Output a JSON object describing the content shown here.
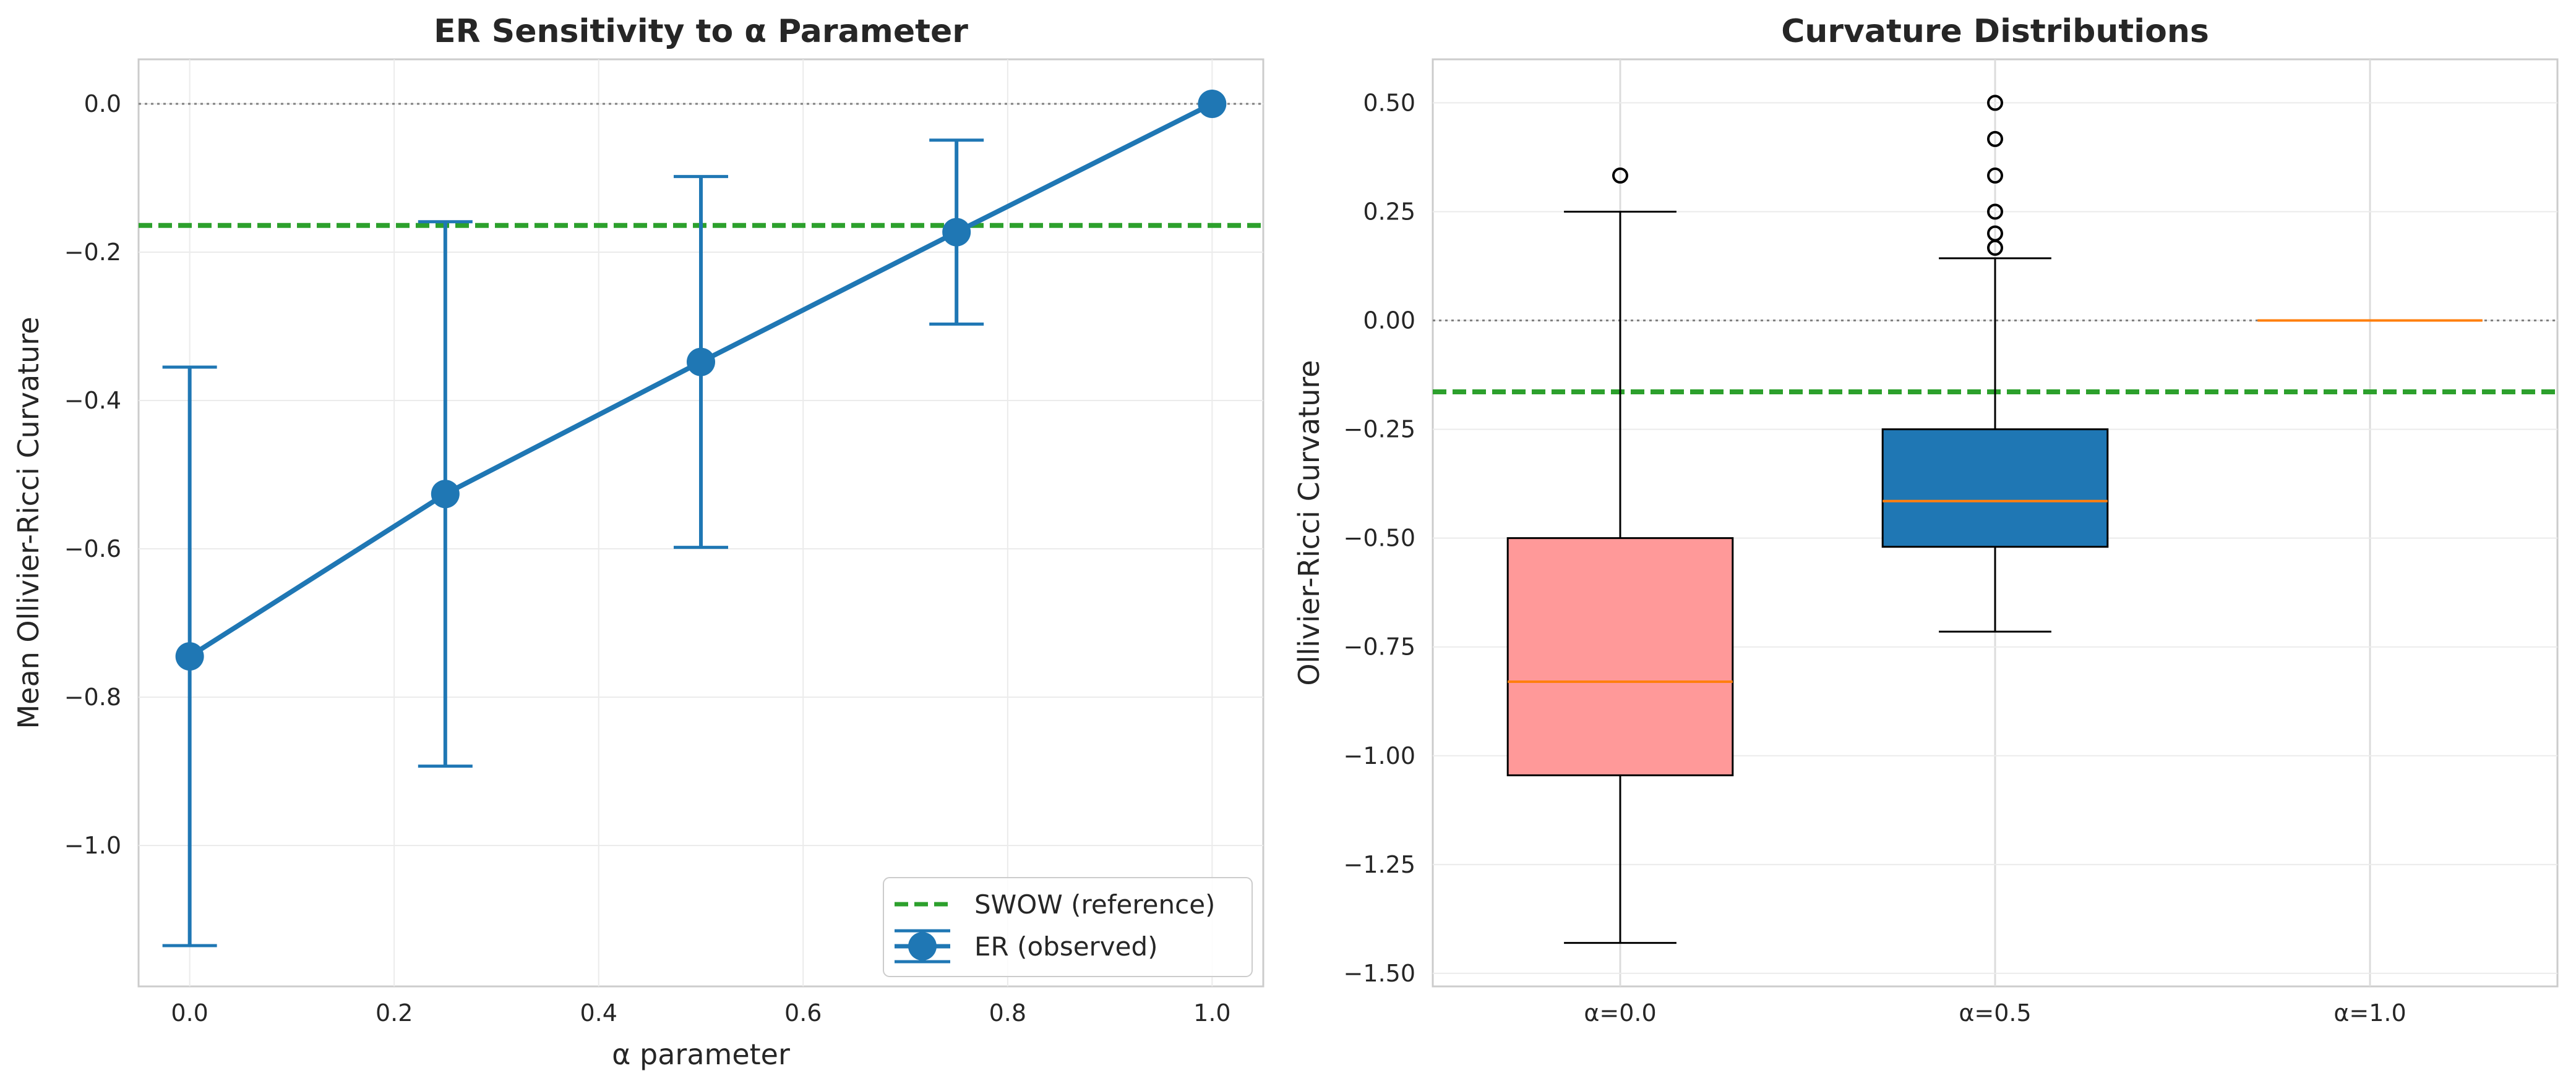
{
  "chart_data": [
    {
      "type": "line",
      "title": "ER Sensitivity to α Parameter",
      "xlabel": "α parameter",
      "ylabel": "Mean Ollivier-Ricci Curvature",
      "xlim": [
        -0.05,
        1.05
      ],
      "ylim": [
        -1.19,
        0.06
      ],
      "xticks": [
        0.0,
        0.2,
        0.4,
        0.6,
        0.8,
        1.0
      ],
      "xtick_labels": [
        "0.0",
        "0.2",
        "0.4",
        "0.6",
        "0.8",
        "1.0"
      ],
      "yticks": [
        0.0,
        -0.2,
        -0.4,
        -0.6,
        -0.8,
        -1.0
      ],
      "ytick_labels": [
        "0.0",
        "−0.2",
        "−0.4",
        "−0.6",
        "−0.8",
        "−1.0"
      ],
      "grid": true,
      "legend": "lower-right",
      "series": [
        {
          "name": "ER (observed)",
          "color": "#1f77b4",
          "x": [
            0.0,
            0.25,
            0.5,
            0.75,
            1.0
          ],
          "y": [
            -0.745,
            -0.526,
            -0.348,
            -0.173,
            0.0
          ],
          "yerr": [
            0.39,
            0.367,
            0.25,
            0.124,
            0.0
          ]
        }
      ],
      "reference_lines": [
        {
          "name": "SWOW (reference)",
          "y": -0.164,
          "color": "#2ca02c",
          "style": "dashed"
        },
        {
          "name": "",
          "y": 0.0,
          "color": "#808080",
          "style": "dotted"
        }
      ]
    },
    {
      "type": "box",
      "title": "Curvature Distributions",
      "xlabel": "",
      "ylabel": "Ollivier-Ricci Curvature",
      "ylim": [
        -1.53,
        0.6
      ],
      "categories": [
        "α=0.0",
        "α=0.5",
        "α=1.0"
      ],
      "yticks": [
        0.5,
        0.25,
        0.0,
        -0.25,
        -0.5,
        -0.75,
        -1.0,
        -1.25,
        -1.5
      ],
      "ytick_labels": [
        "0.50",
        "0.25",
        "0.00",
        "−0.25",
        "−0.50",
        "−0.75",
        "−1.00",
        "−1.25",
        "−1.50"
      ],
      "grid": true,
      "boxes": [
        {
          "category": "α=0.0",
          "whisker_low": -1.43,
          "q1": -1.045,
          "median": -0.83,
          "q3": -0.5,
          "whisker_high": 0.25,
          "outliers": [
            0.333
          ],
          "color": "#ff9999"
        },
        {
          "category": "α=0.5",
          "whisker_low": -0.715,
          "q1": -0.52,
          "median": -0.415,
          "q3": -0.25,
          "whisker_high": 0.143,
          "outliers": [
            0.167,
            0.2,
            0.25,
            0.333,
            0.417,
            0.5
          ],
          "color": "#1f77b4"
        },
        {
          "category": "α=1.0",
          "whisker_low": 0.0,
          "q1": 0.0,
          "median": 0.0,
          "q3": 0.0,
          "whisker_high": 0.0,
          "outliers": [],
          "color": "#66b3ff"
        }
      ],
      "reference_lines": [
        {
          "name": "",
          "y": -0.164,
          "color": "#2ca02c",
          "style": "dashed"
        },
        {
          "name": "",
          "y": 0.0,
          "color": "#808080",
          "style": "dotted"
        }
      ]
    }
  ]
}
